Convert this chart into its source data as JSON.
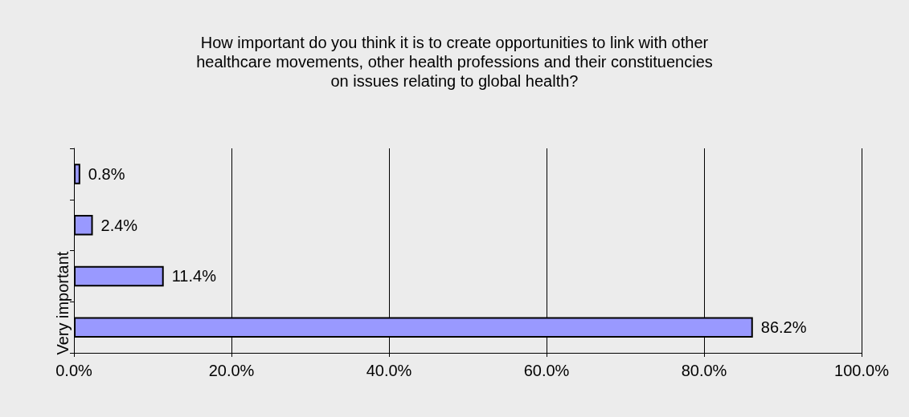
{
  "chart_data": {
    "type": "bar",
    "orientation": "horizontal",
    "title": "How important do you think it is to create opportunities to link with other\nhealthcare movements, other health professions and their constituencies\non issues relating to global health?",
    "categories": [
      null,
      null,
      null,
      "Very important"
    ],
    "values": [
      0.8,
      2.4,
      11.4,
      86.2
    ],
    "value_labels": [
      "0.8%",
      "2.4%",
      "11.4%",
      "86.2%"
    ],
    "color": "#9999ff",
    "xlim": [
      0,
      100
    ],
    "xticks": [
      {
        "value": 0,
        "label": "0.0%"
      },
      {
        "value": 20,
        "label": "20.0%"
      },
      {
        "value": 40,
        "label": "40.0%"
      },
      {
        "value": 60,
        "label": "60.0%"
      },
      {
        "value": 80,
        "label": "80.0%"
      },
      {
        "value": 100,
        "label": "100.0%"
      }
    ],
    "grid": "x"
  }
}
